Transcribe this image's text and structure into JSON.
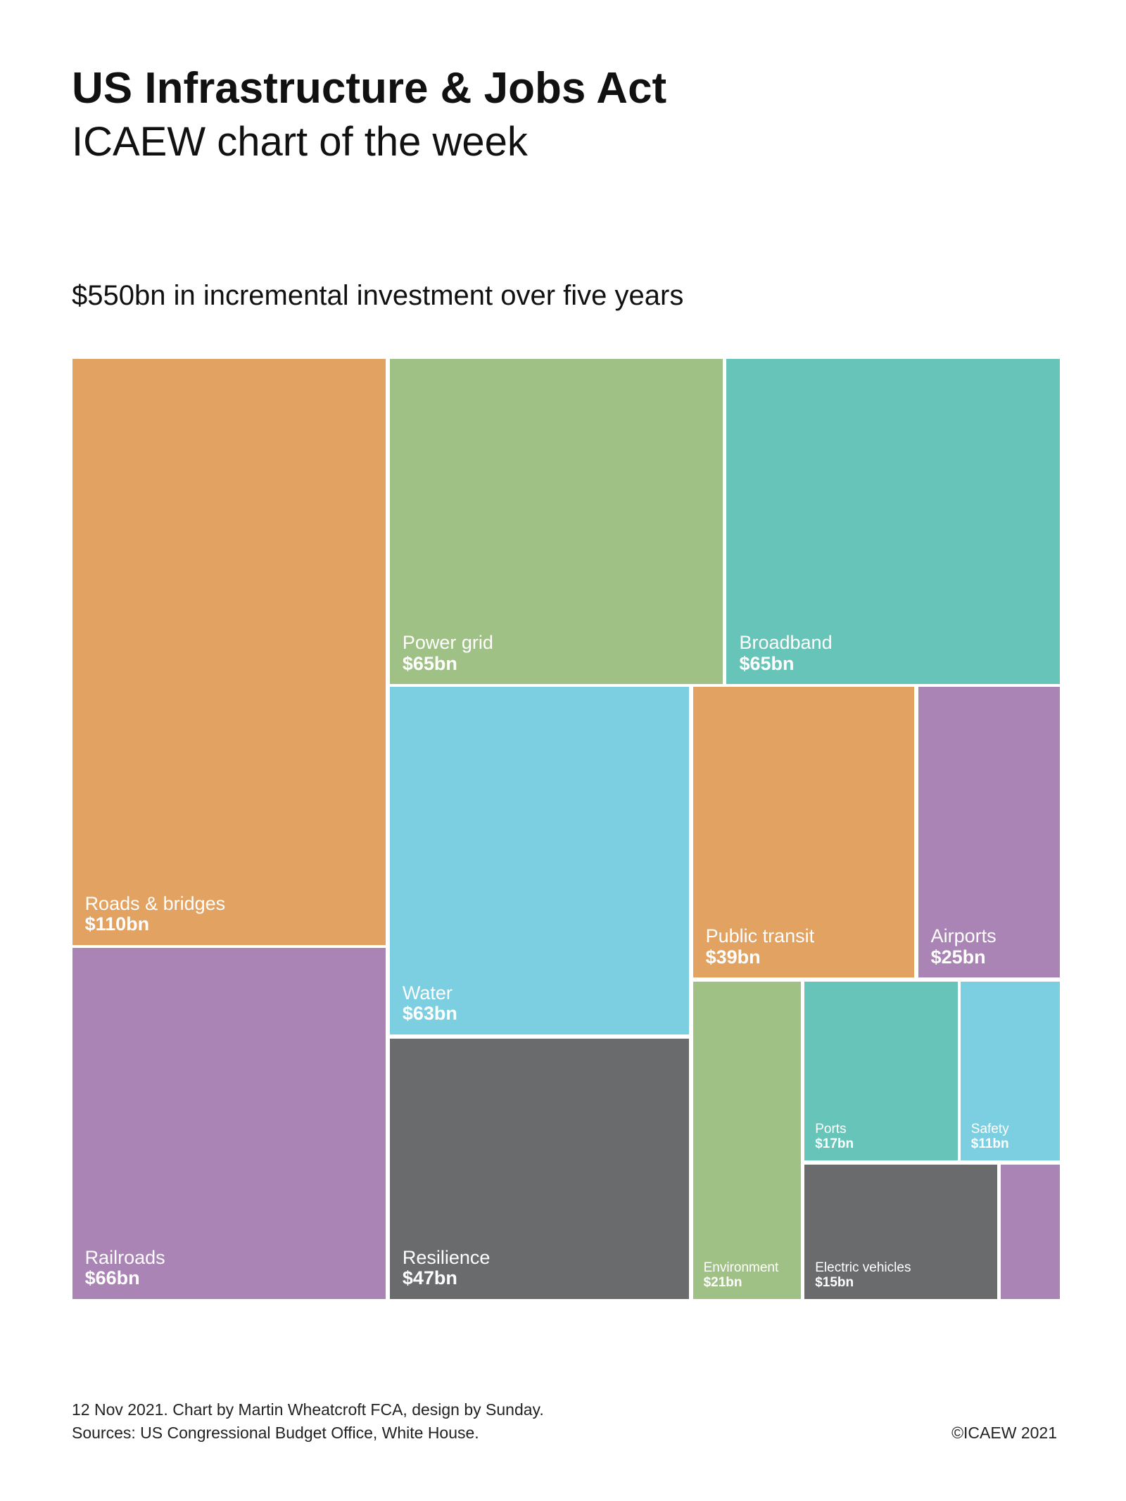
{
  "header": {
    "title": "US Infrastructure & Jobs Act",
    "subtitle": "ICAEW chart of the week"
  },
  "chart_data": {
    "type": "treemap",
    "title": "$550bn in incremental investment over five years",
    "unit": "$bn",
    "items": [
      {
        "name": "Roads & bridges",
        "value": 110,
        "label": "$110bn",
        "color": "#E2A262"
      },
      {
        "name": "Railroads",
        "value": 66,
        "label": "$66bn",
        "color": "#A984B5"
      },
      {
        "name": "Power grid",
        "value": 65,
        "label": "$65bn",
        "color": "#A0C185"
      },
      {
        "name": "Broadband",
        "value": 65,
        "label": "$65bn",
        "color": "#66C4B8"
      },
      {
        "name": "Water",
        "value": 63,
        "label": "$63bn",
        "color": "#7BCFE0"
      },
      {
        "name": "Resilience",
        "value": 47,
        "label": "$47bn",
        "color": "#6A6B6D"
      },
      {
        "name": "Public transit",
        "value": 39,
        "label": "$39bn",
        "color": "#E2A262"
      },
      {
        "name": "Airports",
        "value": 25,
        "label": "$25bn",
        "color": "#A984B5"
      },
      {
        "name": "Environment",
        "value": 21,
        "label": "$21bn",
        "color": "#A0C185"
      },
      {
        "name": "Ports",
        "value": 17,
        "label": "$17bn",
        "color": "#66C4B8"
      },
      {
        "name": "Safety",
        "value": 11,
        "label": "$11bn",
        "color": "#7BCFE0"
      },
      {
        "name": "Electric vehicles",
        "value": 15,
        "label": "$15bn",
        "color": "#6A6B6D"
      },
      {
        "name": "",
        "value": 6,
        "label": "",
        "color": "#A984B5"
      }
    ]
  },
  "footer": {
    "credit": "12  Nov 2021.   Chart by Martin Wheatcroft FCA, design by Sunday.",
    "sources": "Sources: US Congressional Budget Office, White House.",
    "copyright": "©ICAEW 2021"
  }
}
